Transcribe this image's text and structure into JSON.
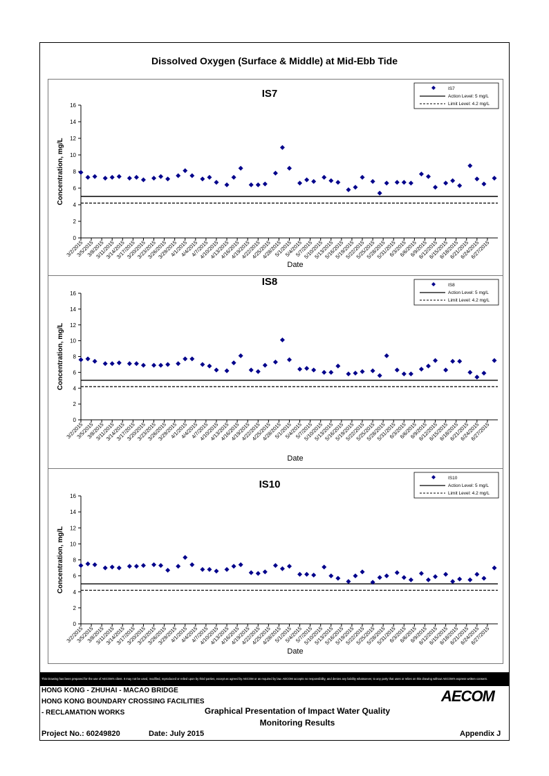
{
  "page_title": "Dissolved Oxygen (Surface & Middle) at Mid-Ebb Tide",
  "chart_data": [
    {
      "type": "scatter",
      "title": "IS7",
      "xlabel": "Date",
      "ylabel": "Concentration, mg/L",
      "ylim": [
        0,
        16
      ],
      "yticks": [
        0,
        2,
        4,
        6,
        8,
        10,
        12,
        14,
        16
      ],
      "xticks": [
        "3/2/2015",
        "3/5/2015",
        "3/8/2015",
        "3/11/2015",
        "3/14/2015",
        "3/17/2015",
        "3/20/2015",
        "3/23/2015",
        "3/26/2015",
        "3/29/2015",
        "4/1/2015",
        "4/4/2015",
        "4/7/2015",
        "4/10/2015",
        "4/13/2015",
        "4/16/2015",
        "4/19/2015",
        "4/22/2015",
        "4/25/2015",
        "4/28/2015",
        "5/1/2015",
        "5/4/2015",
        "5/7/2015",
        "5/10/2015",
        "5/13/2015",
        "5/16/2015",
        "5/19/2015",
        "5/22/2015",
        "5/25/2015",
        "5/28/2015",
        "5/31/2015",
        "6/3/2015",
        "6/6/2015",
        "6/9/2015",
        "6/12/2015",
        "6/15/2015",
        "6/18/2015",
        "6/21/2015",
        "6/24/2015",
        "6/27/2015"
      ],
      "legend": [
        "IS7",
        "Action Level: 5 mg/L",
        "Limit Level: 4.2 mg/L"
      ],
      "legend_position": "top-right",
      "action_level": 5,
      "limit_level": 4.2,
      "series": [
        {
          "name": "IS7",
          "points": [
            [
              "3/2/2015",
              7.9
            ],
            [
              "3/4/2015",
              7.3
            ],
            [
              "3/6/2015",
              7.4
            ],
            [
              "3/9/2015",
              7.2
            ],
            [
              "3/11/2015",
              7.3
            ],
            [
              "3/13/2015",
              7.4
            ],
            [
              "3/16/2015",
              7.2
            ],
            [
              "3/18/2015",
              7.3
            ],
            [
              "3/20/2015",
              7.0
            ],
            [
              "3/23/2015",
              7.2
            ],
            [
              "3/25/2015",
              7.4
            ],
            [
              "3/27/2015",
              7.1
            ],
            [
              "3/30/2015",
              7.5
            ],
            [
              "4/1/2015",
              8.1
            ],
            [
              "4/3/2015",
              7.5
            ],
            [
              "4/6/2015",
              7.1
            ],
            [
              "4/8/2015",
              7.3
            ],
            [
              "4/10/2015",
              6.7
            ],
            [
              "4/13/2015",
              6.4
            ],
            [
              "4/15/2015",
              7.3
            ],
            [
              "4/17/2015",
              8.4
            ],
            [
              "4/20/2015",
              6.4
            ],
            [
              "4/22/2015",
              6.4
            ],
            [
              "4/24/2015",
              6.5
            ],
            [
              "4/27/2015",
              7.8
            ],
            [
              "4/29/2015",
              10.9
            ],
            [
              "5/1/2015",
              8.4
            ],
            [
              "5/4/2015",
              6.6
            ],
            [
              "5/6/2015",
              7.0
            ],
            [
              "5/8/2015",
              6.8
            ],
            [
              "5/11/2015",
              7.3
            ],
            [
              "5/13/2015",
              6.9
            ],
            [
              "5/15/2015",
              6.7
            ],
            [
              "5/18/2015",
              5.8
            ],
            [
              "5/20/2015",
              6.1
            ],
            [
              "5/22/2015",
              7.3
            ],
            [
              "5/25/2015",
              6.8
            ],
            [
              "5/27/2015",
              5.4
            ],
            [
              "5/29/2015",
              6.6
            ],
            [
              "6/1/2015",
              6.7
            ],
            [
              "6/3/2015",
              6.7
            ],
            [
              "6/5/2015",
              6.6
            ],
            [
              "6/8/2015",
              7.7
            ],
            [
              "6/10/2015",
              7.4
            ],
            [
              "6/12/2015",
              6.1
            ],
            [
              "6/15/2015",
              6.6
            ],
            [
              "6/17/2015",
              6.9
            ],
            [
              "6/19/2015",
              6.3
            ],
            [
              "6/22/2015",
              8.7
            ],
            [
              "6/24/2015",
              7.1
            ],
            [
              "6/26/2015",
              6.5
            ],
            [
              "6/29/2015",
              7.2
            ]
          ]
        }
      ]
    },
    {
      "type": "scatter",
      "title": "IS8",
      "xlabel": "Date",
      "ylabel": "Concentration, mg/L",
      "ylim": [
        0,
        16
      ],
      "yticks": [
        0,
        2,
        4,
        6,
        8,
        10,
        12,
        14,
        16
      ],
      "xticks": [
        "3/2/2015",
        "3/5/2015",
        "3/8/2015",
        "3/11/2015",
        "3/14/2015",
        "3/17/2015",
        "3/20/2015",
        "3/23/2015",
        "3/26/2015",
        "3/29/2015",
        "4/1/2015",
        "4/4/2015",
        "4/7/2015",
        "4/10/2015",
        "4/13/2015",
        "4/16/2015",
        "4/19/2015",
        "4/22/2015",
        "4/25/2015",
        "4/28/2015",
        "5/1/2015",
        "5/4/2015",
        "5/7/2015",
        "5/10/2015",
        "5/13/2015",
        "5/16/2015",
        "5/19/2015",
        "5/22/2015",
        "5/25/2015",
        "5/28/2015",
        "5/31/2015",
        "6/3/2015",
        "6/6/2015",
        "6/9/2015",
        "6/12/2015",
        "6/15/2015",
        "6/18/2015",
        "6/21/2015",
        "6/24/2015",
        "6/27/2015"
      ],
      "legend": [
        "IS8",
        "Action Level: 5 mg/L",
        "Limit Level: 4.2 mg/L"
      ],
      "legend_position": "top-right",
      "action_level": 5,
      "limit_level": 4.2,
      "series": [
        {
          "name": "IS8",
          "points": [
            [
              "3/2/2015",
              7.6
            ],
            [
              "3/4/2015",
              7.7
            ],
            [
              "3/6/2015",
              7.4
            ],
            [
              "3/9/2015",
              7.1
            ],
            [
              "3/11/2015",
              7.1
            ],
            [
              "3/13/2015",
              7.2
            ],
            [
              "3/16/2015",
              7.1
            ],
            [
              "3/18/2015",
              7.1
            ],
            [
              "3/20/2015",
              6.9
            ],
            [
              "3/23/2015",
              6.9
            ],
            [
              "3/25/2015",
              6.9
            ],
            [
              "3/27/2015",
              7.0
            ],
            [
              "3/30/2015",
              7.1
            ],
            [
              "4/1/2015",
              7.7
            ],
            [
              "4/3/2015",
              7.7
            ],
            [
              "4/6/2015",
              7.0
            ],
            [
              "4/8/2015",
              6.8
            ],
            [
              "4/10/2015",
              6.3
            ],
            [
              "4/13/2015",
              6.2
            ],
            [
              "4/15/2015",
              7.2
            ],
            [
              "4/17/2015",
              8.1
            ],
            [
              "4/20/2015",
              6.3
            ],
            [
              "4/22/2015",
              6.1
            ],
            [
              "4/24/2015",
              6.9
            ],
            [
              "4/27/2015",
              7.3
            ],
            [
              "4/29/2015",
              10.1
            ],
            [
              "5/1/2015",
              7.6
            ],
            [
              "5/4/2015",
              6.4
            ],
            [
              "5/6/2015",
              6.5
            ],
            [
              "5/8/2015",
              6.3
            ],
            [
              "5/11/2015",
              6.0
            ],
            [
              "5/13/2015",
              6.0
            ],
            [
              "5/15/2015",
              6.8
            ],
            [
              "5/18/2015",
              5.8
            ],
            [
              "5/20/2015",
              5.9
            ],
            [
              "5/22/2015",
              6.1
            ],
            [
              "5/25/2015",
              6.2
            ],
            [
              "5/27/2015",
              5.6
            ],
            [
              "5/29/2015",
              8.1
            ],
            [
              "6/1/2015",
              6.3
            ],
            [
              "6/3/2015",
              5.8
            ],
            [
              "6/5/2015",
              5.8
            ],
            [
              "6/8/2015",
              6.4
            ],
            [
              "6/10/2015",
              6.8
            ],
            [
              "6/12/2015",
              7.5
            ],
            [
              "6/15/2015",
              6.3
            ],
            [
              "6/17/2015",
              7.4
            ],
            [
              "6/19/2015",
              7.4
            ],
            [
              "6/22/2015",
              6.0
            ],
            [
              "6/24/2015",
              5.4
            ],
            [
              "6/26/2015",
              5.9
            ],
            [
              "6/29/2015",
              7.5
            ]
          ]
        }
      ]
    },
    {
      "type": "scatter",
      "title": "IS10",
      "xlabel": "Date",
      "ylabel": "Concentration, mg/L",
      "ylim": [
        0,
        16
      ],
      "yticks": [
        0,
        2,
        4,
        6,
        8,
        10,
        12,
        14,
        16
      ],
      "xticks": [
        "3/2/2015",
        "3/5/2015",
        "3/8/2015",
        "3/11/2015",
        "3/14/2015",
        "3/17/2015",
        "3/20/2015",
        "3/23/2015",
        "3/26/2015",
        "3/29/2015",
        "4/1/2015",
        "4/4/2015",
        "4/7/2015",
        "4/10/2015",
        "4/13/2015",
        "4/16/2015",
        "4/19/2015",
        "4/22/2015",
        "4/25/2015",
        "4/28/2015",
        "5/1/2015",
        "5/4/2015",
        "5/7/2015",
        "5/10/2015",
        "5/13/2015",
        "5/16/2015",
        "5/19/2015",
        "5/22/2015",
        "5/25/2015",
        "5/28/2015",
        "5/31/2015",
        "6/3/2015",
        "6/6/2015",
        "6/9/2015",
        "6/12/2015",
        "6/15/2015",
        "6/18/2015",
        "6/21/2015",
        "6/24/2015",
        "6/27/2015"
      ],
      "legend": [
        "IS10",
        "Action Level: 5 mg/L",
        "Limit Level: 4.2 mg/L"
      ],
      "legend_position": "top-right",
      "action_level": 5,
      "limit_level": 4.2,
      "series": [
        {
          "name": "IS10",
          "points": [
            [
              "3/2/2015",
              7.3
            ],
            [
              "3/4/2015",
              7.5
            ],
            [
              "3/6/2015",
              7.4
            ],
            [
              "3/9/2015",
              7.0
            ],
            [
              "3/11/2015",
              7.1
            ],
            [
              "3/13/2015",
              7.0
            ],
            [
              "3/16/2015",
              7.2
            ],
            [
              "3/18/2015",
              7.2
            ],
            [
              "3/20/2015",
              7.3
            ],
            [
              "3/23/2015",
              7.4
            ],
            [
              "3/25/2015",
              7.3
            ],
            [
              "3/27/2015",
              6.7
            ],
            [
              "3/30/2015",
              7.2
            ],
            [
              "4/1/2015",
              8.3
            ],
            [
              "4/3/2015",
              7.4
            ],
            [
              "4/6/2015",
              6.8
            ],
            [
              "4/8/2015",
              6.8
            ],
            [
              "4/10/2015",
              6.6
            ],
            [
              "4/13/2015",
              6.8
            ],
            [
              "4/15/2015",
              7.2
            ],
            [
              "4/17/2015",
              7.4
            ],
            [
              "4/20/2015",
              6.4
            ],
            [
              "4/22/2015",
              6.3
            ],
            [
              "4/24/2015",
              6.5
            ],
            [
              "4/27/2015",
              7.3
            ],
            [
              "4/29/2015",
              6.9
            ],
            [
              "5/1/2015",
              7.2
            ],
            [
              "5/4/2015",
              6.2
            ],
            [
              "5/6/2015",
              6.2
            ],
            [
              "5/8/2015",
              6.1
            ],
            [
              "5/11/2015",
              7.1
            ],
            [
              "5/13/2015",
              6.0
            ],
            [
              "5/15/2015",
              5.7
            ],
            [
              "5/18/2015",
              5.3
            ],
            [
              "5/20/2015",
              6.0
            ],
            [
              "5/22/2015",
              6.5
            ],
            [
              "5/25/2015",
              5.2
            ],
            [
              "5/27/2015",
              5.8
            ],
            [
              "5/29/2015",
              6.0
            ],
            [
              "6/1/2015",
              6.4
            ],
            [
              "6/3/2015",
              5.8
            ],
            [
              "6/5/2015",
              5.5
            ],
            [
              "6/8/2015",
              6.3
            ],
            [
              "6/10/2015",
              5.5
            ],
            [
              "6/12/2015",
              5.9
            ],
            [
              "6/15/2015",
              6.2
            ],
            [
              "6/17/2015",
              5.3
            ],
            [
              "6/19/2015",
              5.6
            ],
            [
              "6/22/2015",
              5.5
            ],
            [
              "6/24/2015",
              6.2
            ],
            [
              "6/26/2015",
              5.7
            ],
            [
              "6/29/2015",
              7.0
            ]
          ]
        }
      ]
    }
  ],
  "footer": {
    "disclaimer": "This Drawing has been prepared for the use of AECOM's client. It may not be used, modified, reproduced or relied upon by third parties, except as agreed by AECOM or as required by law. AECOM accepts no responsibility, and denies any liability whatsoever, to any party that uses or relies on this drawing without AECOM's express written consent.",
    "project_line1": "HONG KONG - ZHUHAI - MACAO BRIDGE",
    "project_line2": "HONG KONG BOUNDARY CROSSING FACILITIES",
    "project_line3": "- RECLAMATION WORKS",
    "title_line1": "Graphical Presentation of Impact Water Quality",
    "title_line2": "Monitoring Results",
    "project_no": "Project No.: 60249820",
    "date": "Date: July 2015",
    "appendix": "Appendix J",
    "logo": "AECOM"
  }
}
